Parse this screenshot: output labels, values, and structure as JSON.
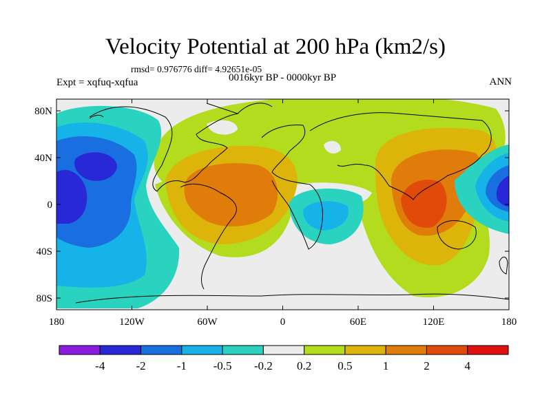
{
  "figure": {
    "title": "Velocity Potential at 200 hPa (km2/s)",
    "stats": "rmsd= 0.976776 diff= 4.92651e-05",
    "left_label": "Expt = xqfuq-xqfua",
    "center_label": "0016kyr BP - 0000kyr BP",
    "right_label": "ANN"
  },
  "axes": {
    "lon_range": [
      -180,
      180
    ],
    "lat_range": [
      -90,
      90
    ],
    "y_ticks": [
      {
        "value": 80,
        "label": "80N"
      },
      {
        "value": 40,
        "label": "40N"
      },
      {
        "value": 0,
        "label": "0"
      },
      {
        "value": -40,
        "label": "40S"
      },
      {
        "value": -80,
        "label": "80S"
      }
    ],
    "x_ticks": [
      {
        "value": -180,
        "label": "180"
      },
      {
        "value": -120,
        "label": "120W"
      },
      {
        "value": -60,
        "label": "60W"
      },
      {
        "value": 0,
        "label": "0"
      },
      {
        "value": 60,
        "label": "60E"
      },
      {
        "value": 120,
        "label": "120E"
      },
      {
        "value": 180,
        "label": "180"
      }
    ]
  },
  "colorbar": {
    "colors": [
      "#8a1ce0",
      "#2828d6",
      "#1a6fe0",
      "#15b3e8",
      "#2ad3c0",
      "#ececec",
      "#b4dc1e",
      "#dcb40a",
      "#e07c0a",
      "#e04a0a",
      "#e01010"
    ],
    "labels": [
      "-4",
      "-2",
      "-1",
      "-0.5",
      "-0.2",
      "0.2",
      "0.5",
      "1",
      "2",
      "4"
    ]
  },
  "chart_data": {
    "type": "heatmap",
    "variable": "Velocity Potential at 200 hPa",
    "units": "km2/s",
    "difference": "0016kyr BP - 0000kyr BP",
    "levels": [
      -4,
      -2,
      -1,
      -0.5,
      -0.2,
      0.2,
      0.5,
      1,
      2,
      4
    ],
    "features": [
      {
        "name": "west-central-pacific-minimum",
        "lon": -155,
        "lat": 0,
        "min_level": "<-2"
      },
      {
        "name": "east-pacific-low",
        "lon": -150,
        "lat": 30,
        "min_level": "-2"
      },
      {
        "name": "west-pacific-dateline-minimum",
        "lon": 172,
        "lat": 3,
        "min_level": "<-2"
      },
      {
        "name": "south-atlantic-africa-low",
        "lon": 28,
        "lat": -18,
        "min_level": "-1"
      },
      {
        "name": "atlantic-south-america-maximum",
        "lon": -35,
        "lat": 5,
        "max_level": "2"
      },
      {
        "name": "indian-ocean-maritime-continent-maximum",
        "lon": 100,
        "lat": -12,
        "max_level": ">2"
      },
      {
        "name": "asia-northern-high",
        "lon": 60,
        "lat": 60,
        "max_level": "0.5"
      }
    ]
  }
}
